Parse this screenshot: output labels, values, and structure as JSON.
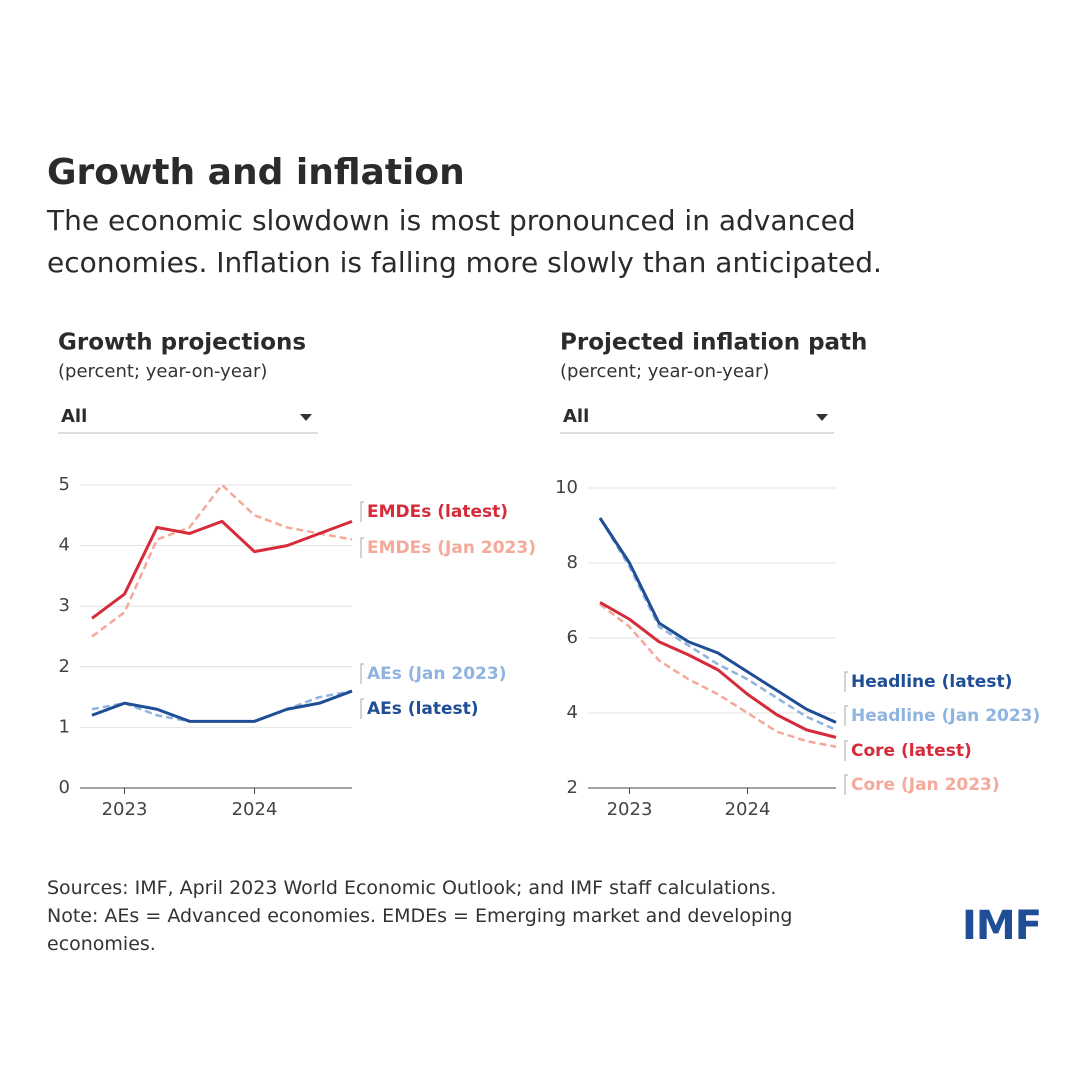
{
  "title": "Growth and inflation",
  "subtitle": "The economic slowdown is most pronounced in advanced economies. Inflation is falling more slowly than anticipated.",
  "sources": "Sources: IMF, April 2023 World Economic Outlook; and IMF staff calculations.",
  "note": "Note: AEs = Advanced economies. EMDEs = Emerging market and developing economies.",
  "logo": "IMF",
  "chart_data": [
    {
      "type": "line",
      "title": "Growth projections",
      "subtitle": "(percent; year-on-year)",
      "filter": "All",
      "categories": [
        null,
        "2023",
        null,
        null,
        null,
        "2024",
        null,
        null,
        null
      ],
      "ylim": [
        0,
        5
      ],
      "yticks": [
        0,
        1,
        2,
        3,
        4,
        5
      ],
      "grid": true,
      "series": [
        {
          "name": "EMDEs (latest)",
          "color": "#d62b3a",
          "dashed": false,
          "values": [
            2.8,
            3.2,
            4.3,
            4.2,
            4.4,
            3.9,
            4.0,
            4.2,
            4.4
          ]
        },
        {
          "name": "EMDEs (Jan 2023)",
          "color": "#f4a99a",
          "dashed": true,
          "values": [
            2.5,
            2.9,
            4.1,
            4.3,
            5.0,
            4.5,
            4.3,
            4.2,
            4.1
          ]
        },
        {
          "name": "AEs (Jan 2023)",
          "color": "#8fb4e0",
          "dashed": true,
          "values": [
            1.3,
            1.4,
            1.2,
            1.1,
            1.1,
            1.1,
            1.3,
            1.5,
            1.6
          ]
        },
        {
          "name": "AEs (latest)",
          "color": "#1f4e96",
          "dashed": false,
          "values": [
            1.2,
            1.4,
            1.3,
            1.1,
            1.1,
            1.1,
            1.3,
            1.4,
            1.6
          ]
        }
      ]
    },
    {
      "type": "line",
      "title": "Projected inflation path",
      "subtitle": "(percent; year-on-year)",
      "filter": "All",
      "categories": [
        null,
        "2023",
        null,
        null,
        null,
        "2024",
        null,
        null,
        null
      ],
      "ylim": [
        2,
        10
      ],
      "yticks": [
        2,
        4,
        6,
        8,
        10
      ],
      "grid": true,
      "series": [
        {
          "name": "Headline (latest)",
          "color": "#1f4e96",
          "dashed": false,
          "values": [
            9.2,
            8.0,
            6.4,
            5.9,
            5.6,
            5.1,
            4.6,
            4.1,
            3.75
          ]
        },
        {
          "name": "Headline (Jan 2023)",
          "color": "#8fb4e0",
          "dashed": true,
          "values": [
            9.2,
            7.9,
            6.3,
            5.8,
            5.3,
            4.9,
            4.4,
            3.9,
            3.55
          ]
        },
        {
          "name": "Core (latest)",
          "color": "#d62b3a",
          "dashed": false,
          "values": [
            6.95,
            6.5,
            5.9,
            5.55,
            5.15,
            4.5,
            3.95,
            3.55,
            3.35
          ]
        },
        {
          "name": "Core (Jan 2023)",
          "color": "#f4a99a",
          "dashed": true,
          "values": [
            6.9,
            6.3,
            5.4,
            4.9,
            4.5,
            4.0,
            3.5,
            3.25,
            3.1
          ]
        }
      ]
    }
  ]
}
